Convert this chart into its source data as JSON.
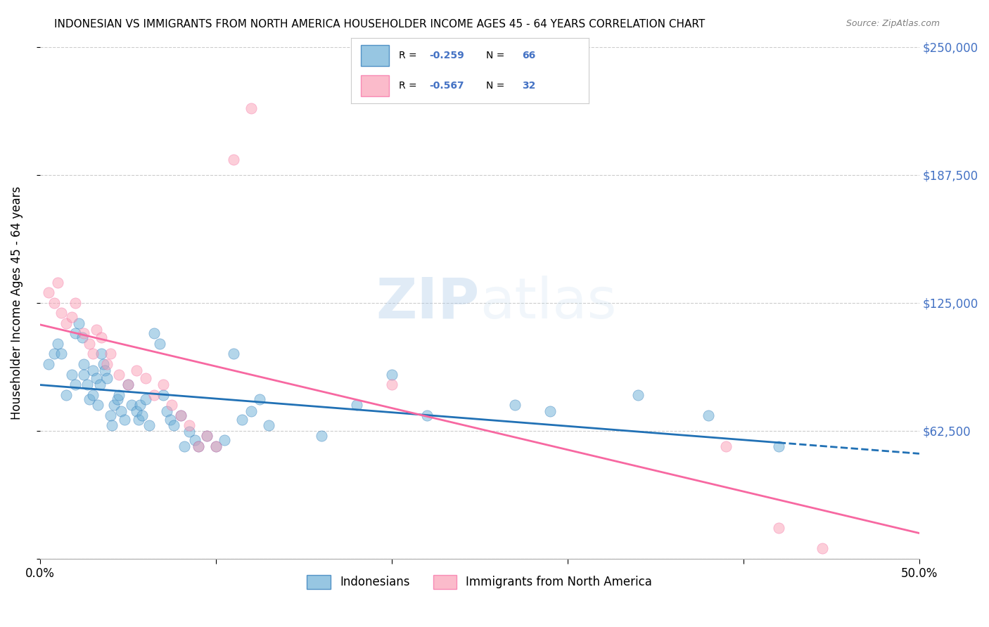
{
  "title": "INDONESIAN VS IMMIGRANTS FROM NORTH AMERICA HOUSEHOLDER INCOME AGES 45 - 64 YEARS CORRELATION CHART",
  "source": "Source: ZipAtlas.com",
  "xlabel": "",
  "ylabel": "Householder Income Ages 45 - 64 years",
  "xlim": [
    0.0,
    0.5
  ],
  "ylim": [
    0,
    250000
  ],
  "yticks": [
    0,
    62500,
    125000,
    187500,
    250000
  ],
  "ytick_labels": [
    "",
    "$62,500",
    "$125,000",
    "$187,500",
    "$250,000"
  ],
  "xticks": [
    0.0,
    0.1,
    0.2,
    0.3,
    0.4,
    0.5
  ],
  "xtick_labels": [
    "0.0%",
    "",
    "",
    "",
    "",
    "50.0%"
  ],
  "blue_R": -0.259,
  "blue_N": 66,
  "pink_R": -0.567,
  "pink_N": 32,
  "blue_color": "#6baed6",
  "pink_color": "#fa9fb5",
  "blue_line_color": "#2171b5",
  "pink_line_color": "#f768a1",
  "background": "#ffffff",
  "watermark_zip": "ZIP",
  "watermark_atlas": "atlas",
  "legend_label_blue": "Indonesians",
  "legend_label_pink": "Immigrants from North America",
  "blue_scatter_x": [
    0.005,
    0.008,
    0.01,
    0.012,
    0.015,
    0.018,
    0.02,
    0.02,
    0.022,
    0.024,
    0.025,
    0.025,
    0.027,
    0.028,
    0.03,
    0.03,
    0.032,
    0.033,
    0.034,
    0.035,
    0.036,
    0.037,
    0.038,
    0.04,
    0.041,
    0.042,
    0.044,
    0.045,
    0.046,
    0.048,
    0.05,
    0.052,
    0.055,
    0.056,
    0.057,
    0.058,
    0.06,
    0.062,
    0.065,
    0.068,
    0.07,
    0.072,
    0.074,
    0.076,
    0.08,
    0.082,
    0.085,
    0.088,
    0.09,
    0.095,
    0.1,
    0.105,
    0.11,
    0.115,
    0.12,
    0.125,
    0.13,
    0.16,
    0.18,
    0.2,
    0.22,
    0.27,
    0.29,
    0.34,
    0.38,
    0.42
  ],
  "blue_scatter_y": [
    95000,
    100000,
    105000,
    100000,
    80000,
    90000,
    110000,
    85000,
    115000,
    108000,
    95000,
    90000,
    85000,
    78000,
    92000,
    80000,
    88000,
    75000,
    85000,
    100000,
    95000,
    92000,
    88000,
    70000,
    65000,
    75000,
    78000,
    80000,
    72000,
    68000,
    85000,
    75000,
    72000,
    68000,
    75000,
    70000,
    78000,
    65000,
    110000,
    105000,
    80000,
    72000,
    68000,
    65000,
    70000,
    55000,
    62000,
    58000,
    55000,
    60000,
    55000,
    58000,
    100000,
    68000,
    72000,
    78000,
    65000,
    60000,
    75000,
    90000,
    70000,
    75000,
    72000,
    80000,
    70000,
    55000
  ],
  "pink_scatter_x": [
    0.005,
    0.008,
    0.01,
    0.012,
    0.015,
    0.018,
    0.02,
    0.025,
    0.028,
    0.03,
    0.032,
    0.035,
    0.038,
    0.04,
    0.045,
    0.05,
    0.055,
    0.06,
    0.065,
    0.07,
    0.075,
    0.08,
    0.085,
    0.09,
    0.095,
    0.1,
    0.11,
    0.12,
    0.2,
    0.39,
    0.42,
    0.445
  ],
  "pink_scatter_y": [
    130000,
    125000,
    135000,
    120000,
    115000,
    118000,
    125000,
    110000,
    105000,
    100000,
    112000,
    108000,
    95000,
    100000,
    90000,
    85000,
    92000,
    88000,
    80000,
    85000,
    75000,
    70000,
    65000,
    55000,
    60000,
    55000,
    195000,
    220000,
    85000,
    55000,
    15000,
    5000
  ]
}
